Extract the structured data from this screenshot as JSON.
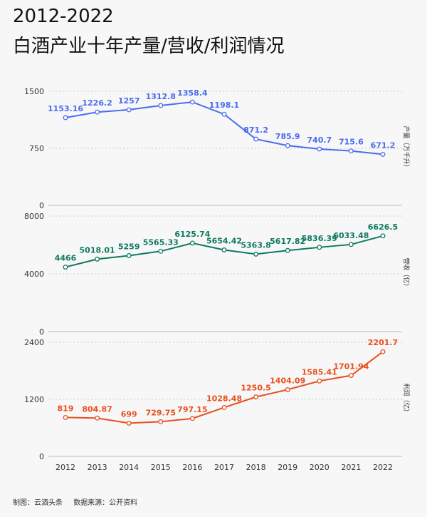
{
  "title": {
    "line1": "2012-2022",
    "line2": "白酒产业十年产量/营收/利润情况"
  },
  "footer": {
    "maker": "制图：云酒头条",
    "source": "数据来源：公开资料"
  },
  "chart_data": [
    {
      "type": "line",
      "title": "产量",
      "ylabel": "产量（万千升）",
      "color": "#4a6cf0",
      "x": [
        "2012",
        "2013",
        "2014",
        "2015",
        "2016",
        "2017",
        "2018",
        "2019",
        "2020",
        "2021",
        "2022"
      ],
      "values": [
        1153.16,
        1226.2,
        1257,
        1312.8,
        1358.4,
        1198.1,
        871.2,
        785.9,
        740.7,
        715.6,
        671.2
      ],
      "labels": [
        "1153.16",
        "1226.2",
        "1257",
        "1312.8",
        "1358.4",
        "1198.1",
        "871.2",
        "785.9",
        "740.7",
        "715.6",
        "671.2"
      ],
      "ylim": [
        0,
        1500
      ],
      "yticks": [
        "0",
        "750",
        "1500"
      ]
    },
    {
      "type": "line",
      "title": "营收",
      "ylabel": "营收（亿）",
      "color": "#0d7a5f",
      "x": [
        "2012",
        "2013",
        "2014",
        "2015",
        "2016",
        "2017",
        "2018",
        "2019",
        "2020",
        "2021",
        "2022"
      ],
      "values": [
        4466,
        5018.01,
        5259,
        5565.33,
        6125.74,
        5654.42,
        5363.8,
        5617.82,
        5836.39,
        6033.48,
        6626.5
      ],
      "labels": [
        "4466",
        "5018.01",
        "5259",
        "5565.33",
        "6125.74",
        "5654.42",
        "5363.8",
        "5617.82",
        "5836.39",
        "6033.48",
        "6626.5"
      ],
      "ylim": [
        0,
        8000
      ],
      "yticks": [
        "0",
        "4000",
        "8000"
      ]
    },
    {
      "type": "line",
      "title": "利润",
      "ylabel": "利润（亿）",
      "color": "#e8501e",
      "x": [
        "2012",
        "2013",
        "2014",
        "2015",
        "2016",
        "2017",
        "2018",
        "2019",
        "2020",
        "2021",
        "2022"
      ],
      "values": [
        819,
        804.87,
        699,
        729.75,
        797.15,
        1028.48,
        1250.5,
        1404.09,
        1585.41,
        1701.94,
        2201.7
      ],
      "labels": [
        "819",
        "804.87",
        "699",
        "729.75",
        "797.15",
        "1028.48",
        "1250.5",
        "1404.09",
        "1585.41",
        "1701.94",
        "2201.7"
      ],
      "ylim": [
        0,
        2400
      ],
      "yticks": [
        "0",
        "1200",
        "2400"
      ]
    }
  ]
}
